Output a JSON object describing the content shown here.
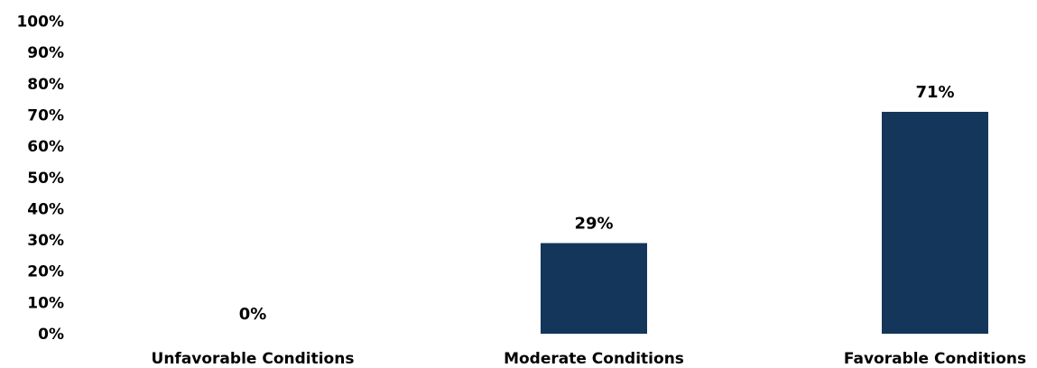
{
  "chart_data": {
    "type": "bar",
    "title": "",
    "xlabel": "",
    "ylabel": "",
    "categories": [
      "Unfavorable Conditions",
      "Moderate Conditions",
      "Favorable Conditions"
    ],
    "values": [
      0,
      29,
      71
    ],
    "data_labels": [
      "0%",
      "29%",
      "71%"
    ],
    "yticks": [
      "0%",
      "10%",
      "20%",
      "30%",
      "40%",
      "50%",
      "60%",
      "70%",
      "80%",
      "90%",
      "100%"
    ],
    "ylim": [
      0,
      100
    ],
    "grid": false,
    "legend": "none",
    "bar_color": "#14365A"
  }
}
